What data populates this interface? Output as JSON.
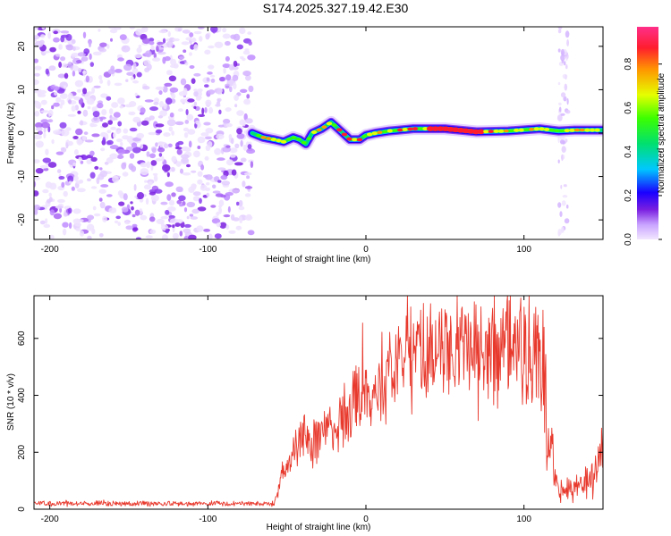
{
  "title": "S174.2025.327.19.42.E30",
  "colors": {
    "snr_line": "#e8392d",
    "frame": "#000000"
  },
  "chart_data": [
    {
      "type": "heatmap",
      "name": "spectrogram",
      "xlabel": "Height of straight line (km)",
      "ylabel": "Frequency (Hz)",
      "xlim": [
        -210,
        150
      ],
      "ylim": [
        -24.5,
        24.5
      ],
      "xticks": [
        -200,
        -100,
        0,
        100
      ],
      "yticks": [
        -20,
        -10,
        0,
        10,
        20
      ],
      "noise_region_x": [
        -210,
        -72
      ],
      "ridge": {
        "x": [
          -72,
          -65,
          -58,
          -52,
          -46,
          -42,
          -38,
          -34,
          -28,
          -22,
          -16,
          -10,
          -4,
          0,
          6,
          15,
          30,
          50,
          70,
          90,
          110,
          122,
          132,
          150
        ],
        "freq": [
          0,
          -1,
          -1.5,
          -2,
          -1,
          -1.5,
          -2.5,
          0,
          1,
          2.5,
          0.5,
          -1.5,
          -1.5,
          -0.5,
          0,
          0.5,
          1,
          1,
          0.3,
          0.5,
          1,
          0.5,
          0.7,
          0.7
        ]
      },
      "colorbar": {
        "label": "Normalized spectral amplitude",
        "range": [
          0.0,
          0.97
        ],
        "ticks": [
          "0.0",
          "0.2",
          "0.4",
          "0.6",
          "0.8"
        ]
      }
    },
    {
      "type": "line",
      "name": "snr",
      "xlabel": "Height of straight line (km)",
      "ylabel": "SNR (10 * v/v)",
      "xlim": [
        -210,
        150
      ],
      "ylim": [
        0,
        750
      ],
      "xticks": [
        -200,
        -100,
        0,
        100
      ],
      "yticks": [
        0,
        200,
        400,
        600
      ],
      "series": [
        {
          "name": "SNR",
          "x": [
            -210,
            -160,
            -120,
            -80,
            -58,
            -55,
            -52,
            -48,
            -45,
            -40,
            -35,
            -30,
            -25,
            -20,
            -15,
            -10,
            -5,
            0,
            5,
            10,
            15,
            20,
            25,
            30,
            35,
            40,
            45,
            50,
            55,
            60,
            65,
            70,
            75,
            80,
            85,
            90,
            95,
            100,
            105,
            110,
            113,
            116,
            120,
            125,
            130,
            135,
            140,
            145,
            150
          ],
          "values": [
            20,
            20,
            20,
            20,
            20,
            80,
            140,
            150,
            200,
            270,
            240,
            260,
            290,
            280,
            320,
            330,
            380,
            390,
            390,
            450,
            480,
            490,
            520,
            520,
            550,
            540,
            560,
            550,
            570,
            560,
            570,
            540,
            530,
            560,
            520,
            570,
            590,
            560,
            570,
            540,
            380,
            250,
            100,
            60,
            70,
            80,
            100,
            120,
            230
          ]
        }
      ]
    }
  ]
}
